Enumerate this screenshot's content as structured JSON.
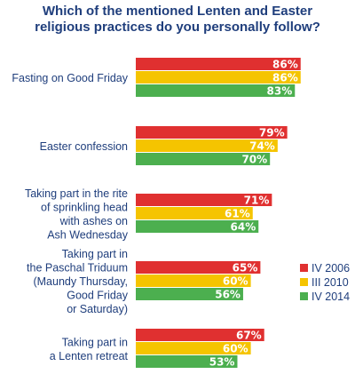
{
  "chart_data": {
    "type": "bar",
    "orientation": "horizontal",
    "title_lines": [
      "Which of the mentioned Lenten and Easter",
      "religious practices do you personally follow?"
    ],
    "categories": [
      [
        "Fasting on Good Friday"
      ],
      [
        "Easter confession"
      ],
      [
        "Taking part in the rite",
        "of sprinkling head",
        "with ashes on",
        "Ash Wednesday"
      ],
      [
        "Taking part in",
        "the Paschal Triduum",
        "(Maundy Thursday,",
        "Good Friday",
        "or Saturday)"
      ],
      [
        "Taking part in",
        "a Lenten retreat"
      ]
    ],
    "series": [
      {
        "name": "IV 2006",
        "color": "#e03030",
        "values": [
          86,
          79,
          71,
          65,
          67
        ]
      },
      {
        "name": "III 2010",
        "color": "#f5c400",
        "values": [
          86,
          74,
          61,
          60,
          60
        ]
      },
      {
        "name": "IV 2014",
        "color": "#4caf4f",
        "values": [
          83,
          70,
          64,
          56,
          53
        ]
      }
    ],
    "value_suffix": "%",
    "xlim": [
      0,
      100
    ],
    "legend_position": "right",
    "grid": false
  }
}
